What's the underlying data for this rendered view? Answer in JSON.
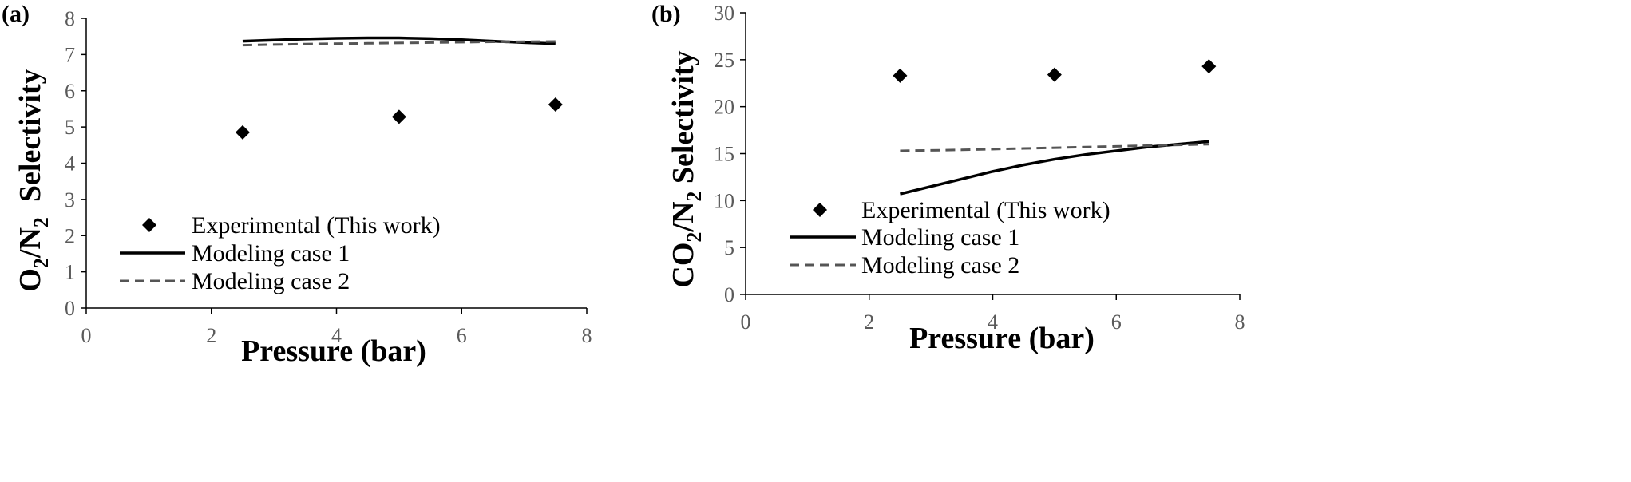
{
  "chart_data": [
    {
      "type": "scatter",
      "panel_label": "(a)",
      "xlabel": "Pressure (bar)",
      "ylabel_parts": [
        "O",
        "2",
        "/N",
        "2",
        "  Selectivity"
      ],
      "ylabel_text": "O2/N2 Selectivity",
      "xlim": [
        0,
        8
      ],
      "ylim": [
        0,
        8
      ],
      "xticks": [
        0,
        2,
        4,
        6,
        8
      ],
      "yticks": [
        0,
        1,
        2,
        3,
        4,
        5,
        6,
        7,
        8
      ],
      "grid": false,
      "legend_position": "bottom-left",
      "series": [
        {
          "name": "Experimental (This work)",
          "style": "diamond",
          "color": "#000000",
          "x": [
            2.5,
            5.0,
            7.5
          ],
          "y": [
            4.85,
            5.28,
            5.62
          ]
        },
        {
          "name": "Modeling case 1",
          "style": "solid",
          "color": "#000000",
          "x": [
            2.5,
            3.0,
            3.5,
            4.0,
            4.5,
            5.0,
            5.5,
            6.0,
            6.5,
            7.0,
            7.5
          ],
          "y": [
            7.37,
            7.4,
            7.43,
            7.45,
            7.46,
            7.46,
            7.44,
            7.41,
            7.37,
            7.33,
            7.3
          ]
        },
        {
          "name": "Modeling case 2",
          "style": "dashed",
          "color": "#555555",
          "x": [
            2.5,
            3.5,
            4.5,
            5.5,
            6.5,
            7.5
          ],
          "y": [
            7.26,
            7.29,
            7.31,
            7.33,
            7.35,
            7.36
          ]
        }
      ]
    },
    {
      "type": "scatter",
      "panel_label": "(b)",
      "xlabel": "Pressure (bar)",
      "ylabel_parts": [
        "CO",
        "2",
        "/N",
        "2",
        " Selectivity"
      ],
      "ylabel_text": "CO2/N2 Selectivity",
      "xlim": [
        0,
        8
      ],
      "ylim": [
        0,
        30
      ],
      "xticks": [
        0,
        2,
        4,
        6,
        8
      ],
      "yticks": [
        0,
        5,
        10,
        15,
        20,
        25,
        30
      ],
      "grid": false,
      "legend_position": "bottom-left",
      "series": [
        {
          "name": "Experimental (This work)",
          "style": "diamond",
          "color": "#000000",
          "x": [
            2.5,
            5.0,
            7.5
          ],
          "y": [
            23.3,
            23.4,
            24.3
          ]
        },
        {
          "name": "Modeling case 1",
          "style": "solid",
          "color": "#000000",
          "x": [
            2.5,
            3.0,
            3.5,
            4.0,
            4.5,
            5.0,
            5.5,
            6.0,
            6.5,
            7.0,
            7.5
          ],
          "y": [
            10.7,
            11.5,
            12.3,
            13.1,
            13.8,
            14.4,
            14.9,
            15.3,
            15.7,
            16.0,
            16.3
          ]
        },
        {
          "name": "Modeling case 2",
          "style": "dashed",
          "color": "#555555",
          "x": [
            2.5,
            3.5,
            4.5,
            5.5,
            6.5,
            7.5
          ],
          "y": [
            15.3,
            15.4,
            15.55,
            15.7,
            15.85,
            16.0
          ]
        }
      ]
    }
  ]
}
